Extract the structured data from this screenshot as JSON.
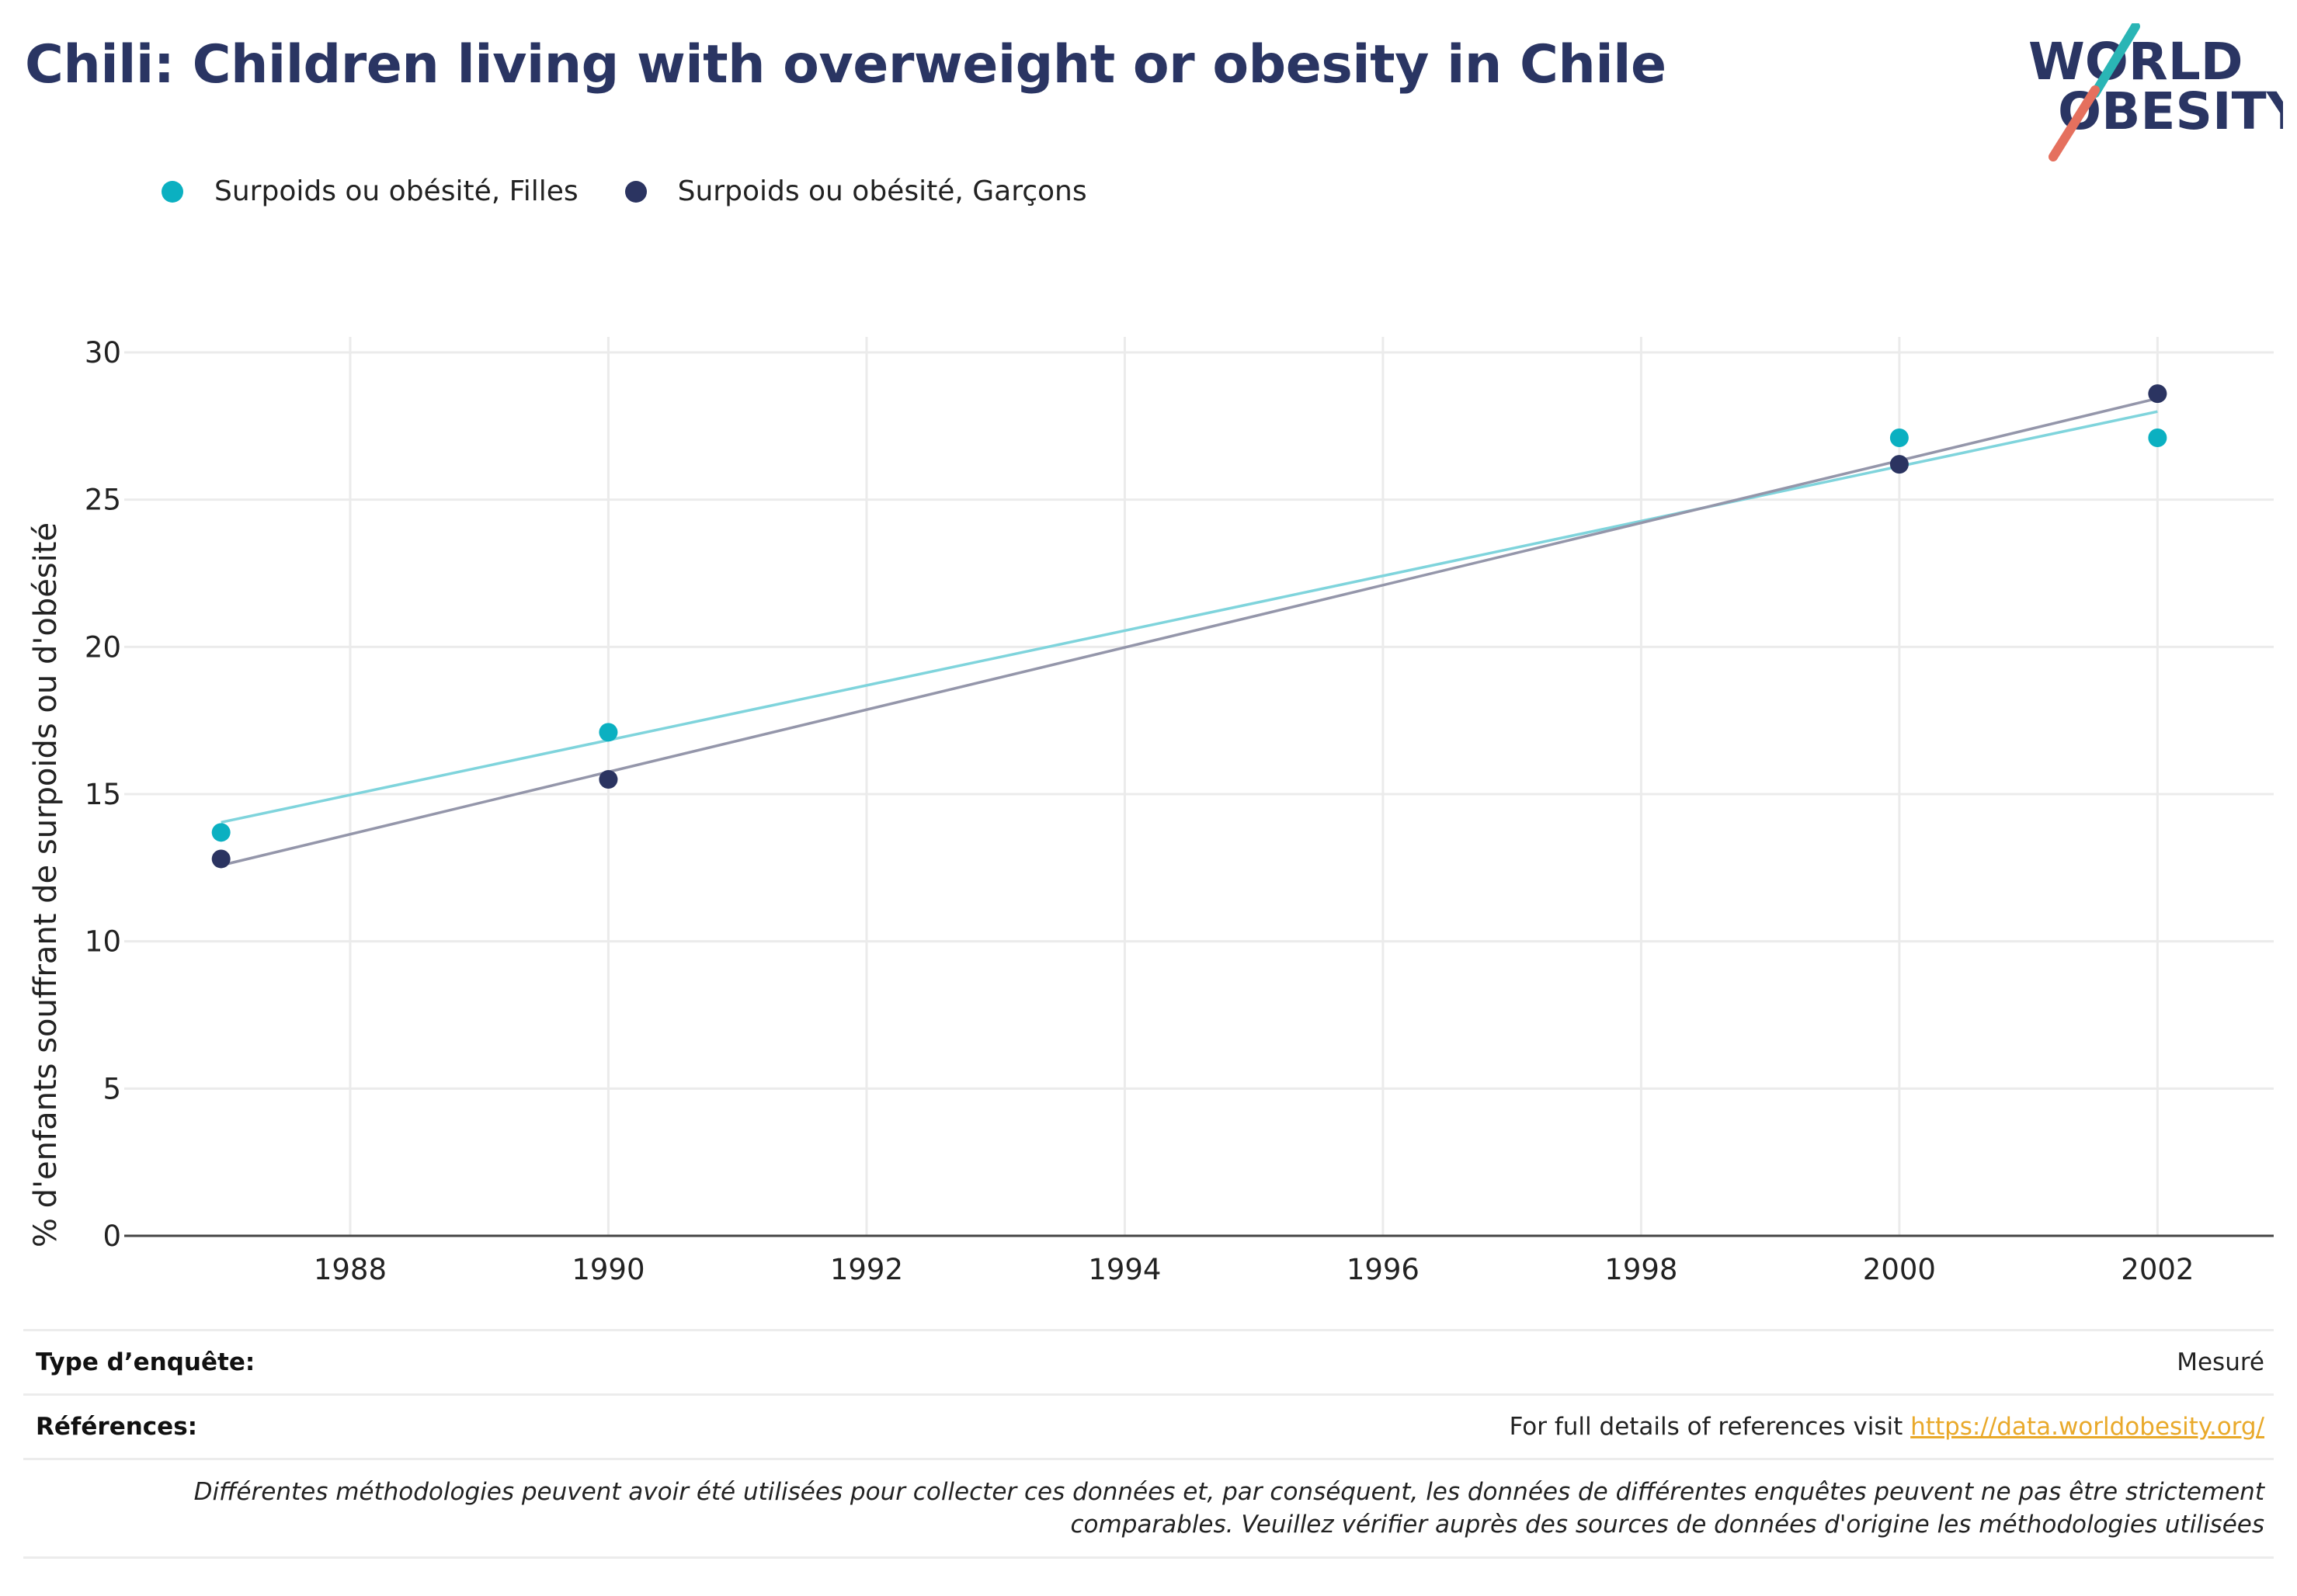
{
  "title": "Chili: Children living with overweight or obesity in Chile",
  "logo": {
    "line1": "WORLD",
    "line2": "OBESITY"
  },
  "legend": [
    {
      "label": "Surpoids ou obésité, Filles",
      "color": "#0bb0c1"
    },
    {
      "label": "Surpoids ou obésité, Garçons",
      "color": "#2b3461"
    }
  ],
  "chart_data": {
    "type": "scatter",
    "title": "Chili: Children living with overweight or obesity in Chile",
    "xlabel": "",
    "ylabel": "% d'enfants souffrant de surpoids ou d'obésité",
    "xlim": [
      1986.25,
      2002.9
    ],
    "ylim": [
      0,
      30
    ],
    "xticks": [
      1988,
      1990,
      1992,
      1994,
      1996,
      1998,
      2000,
      2002
    ],
    "yticks": [
      0,
      5,
      10,
      15,
      20,
      25,
      30
    ],
    "grid": true,
    "legend_position": "top-left",
    "trendlines": true,
    "series": [
      {
        "name": "Surpoids ou obésité, Filles",
        "color": "#0bb0c1",
        "trend_color": "#7fd4dc",
        "x": [
          1987,
          1990,
          2000,
          2002
        ],
        "y": [
          13.7,
          17.1,
          27.1,
          27.1
        ]
      },
      {
        "name": "Surpoids ou obésité, Garçons",
        "color": "#2b3461",
        "trend_color": "#9496aa",
        "x": [
          1987,
          1990,
          2000,
          2002
        ],
        "y": [
          12.8,
          15.5,
          26.2,
          28.6
        ]
      }
    ]
  },
  "footer": {
    "survey_label": "Type d’enquête:",
    "survey_value": "Mesuré",
    "references_label": "Références:",
    "references_text": "For full details of references visit ",
    "references_link": "https://data.worldobesity.org/",
    "note_line1": "Différentes méthodologies peuvent avoir été utilisées pour collecter ces données et, par conséquent, les données de différentes enquêtes peuvent ne pas être strictement",
    "note_line2": "comparables. Veuillez vérifier auprès des sources de données d'origine les méthodologies utilisées"
  }
}
